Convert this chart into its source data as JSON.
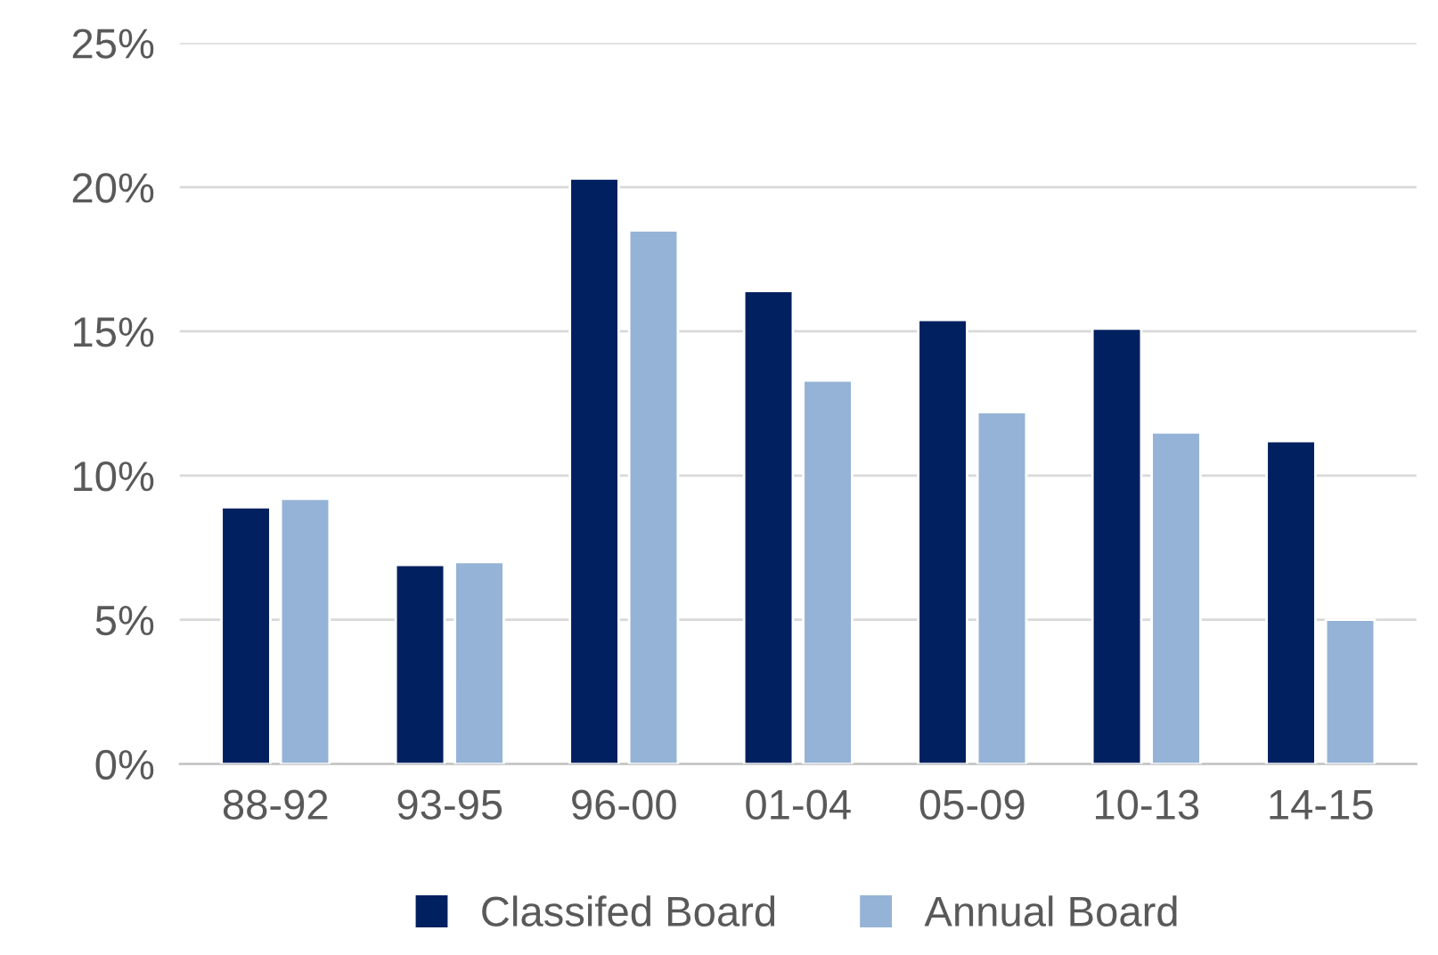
{
  "chart_data": {
    "type": "bar",
    "categories": [
      "88-92",
      "93-95",
      "96-00",
      "01-04",
      "05-09",
      "10-13",
      "14-15"
    ],
    "series": [
      {
        "name": "Classifed Board",
        "color": "#002060",
        "values": [
          8.9,
          6.9,
          20.3,
          16.4,
          15.4,
          15.1,
          11.2
        ]
      },
      {
        "name": "Annual Board",
        "color": "#95b3d7",
        "values": [
          9.2,
          7.0,
          18.5,
          13.3,
          12.2,
          11.5,
          5.0
        ]
      }
    ],
    "ylim": [
      0,
      25
    ],
    "yticks": [
      {
        "value": 0,
        "label": "0%"
      },
      {
        "value": 5,
        "label": "5%"
      },
      {
        "value": 10,
        "label": "10%"
      },
      {
        "value": 15,
        "label": "15%"
      },
      {
        "value": 20,
        "label": "20%"
      },
      {
        "value": 25,
        "label": "25%"
      }
    ],
    "grid": "y",
    "legend": "bottom"
  }
}
